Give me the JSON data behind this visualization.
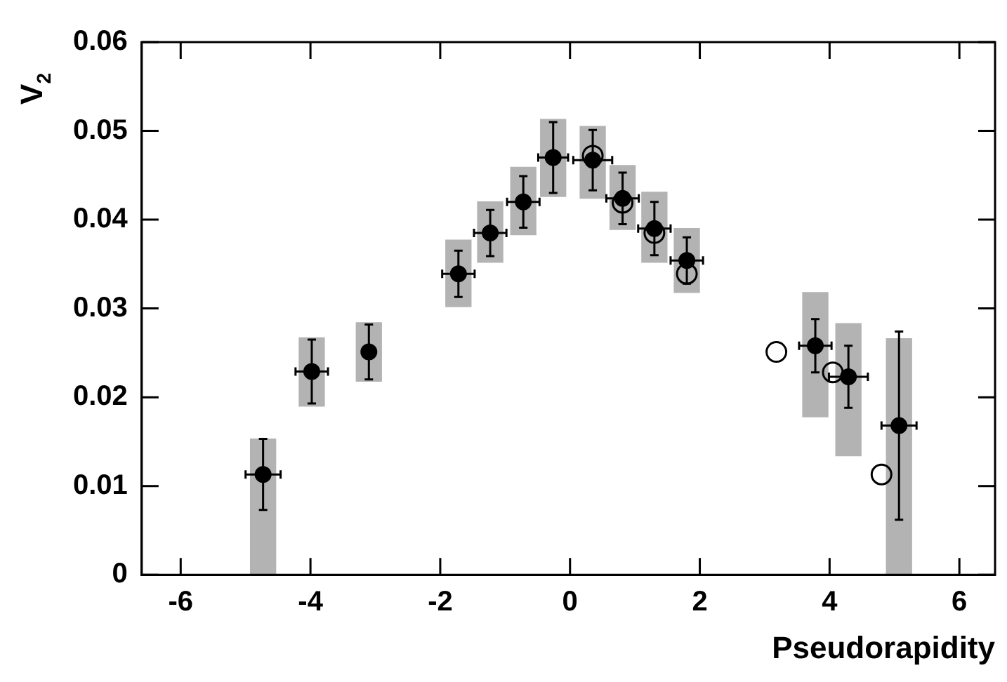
{
  "chart_data": {
    "type": "scatter",
    "xlabel": "Pseudorapidity",
    "ylabel": "V$_{2}$",
    "xlim": [
      -6.6,
      6.55
    ],
    "ylim": [
      0,
      0.06
    ],
    "xticks": [
      -6,
      -4,
      -2,
      0,
      2,
      4,
      6
    ],
    "yticks": [
      0,
      0.01,
      0.02,
      0.03,
      0.04,
      0.05,
      0.06
    ],
    "grid": false,
    "legend": false,
    "series": [
      {
        "type": "bar",
        "color": "#b3b3b3",
        "x": [
          -4.73,
          -3.98,
          -3.1,
          -1.72,
          -1.23,
          -0.72,
          -0.26,
          0.35,
          0.81,
          1.3,
          1.8,
          3.78,
          4.29,
          5.07
        ],
        "base": [
          0,
          0.019,
          0.0218,
          0.0302,
          0.0352,
          0.0383,
          0.0426,
          0.0424,
          0.0389,
          0.0352,
          0.0318,
          0.0178,
          0.0134,
          0
        ],
        "values": [
          0.0153,
          0.0077,
          0.0066,
          0.0075,
          0.0068,
          0.0076,
          0.0087,
          0.0081,
          0.0072,
          0.0079,
          0.0072,
          0.014,
          0.0149,
          0.0266
        ]
      },
      {
        "marker": "circle",
        "color": "#000000",
        "x": [
          -4.73,
          -3.98,
          -3.1,
          -1.72,
          -1.23,
          -0.72,
          -0.26,
          0.35,
          0.81,
          1.3,
          1.8,
          3.78,
          4.29,
          5.07
        ],
        "values": [
          0.0113,
          0.0229,
          0.0251,
          0.0339,
          0.0385,
          0.042,
          0.047,
          0.0467,
          0.0424,
          0.039,
          0.0354,
          0.0258,
          0.0223,
          0.0168
        ],
        "errors": [
          0.004,
          0.0036,
          0.0031,
          0.0026,
          0.0026,
          0.0029,
          0.004,
          0.0034,
          0.0029,
          0.003,
          0.0026,
          0.003,
          0.0035,
          0.0106
        ],
        "xerrors": [
          0.27,
          0.25,
          null,
          0.25,
          0.25,
          0.25,
          0.23,
          0.3,
          0.25,
          0.25,
          0.25,
          0.25,
          0.3,
          0.27
        ]
      },
      {
        "marker": "circle",
        "color": "#000000",
        "x": [
          0.35,
          0.81,
          1.3,
          1.8,
          3.18,
          4.05,
          4.8
        ],
        "values": [
          0.0472,
          0.0419,
          0.0385,
          0.0339,
          0.0251,
          0.0228,
          0.0113
        ]
      }
    ]
  }
}
